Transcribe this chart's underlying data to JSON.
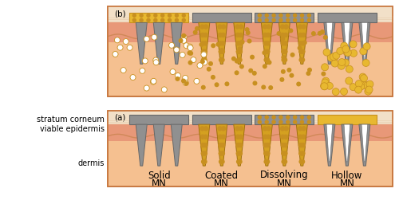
{
  "bg_color": "#ffffff",
  "dermis_color": "#f5c090",
  "epi_color": "#e89878",
  "sc_color": "#f2e0c8",
  "sc_cell_color": "#e8d0b0",
  "border_color": "#c87840",
  "wave_color": "#d08858",
  "gray_color": "#909090",
  "gray_dark": "#686868",
  "gold_color": "#c89020",
  "gold_light": "#e8b830",
  "gold_dot": "#c89020",
  "gold_fill": "#d4a020",
  "white_color": "#ffffff",
  "label_a": "(a)",
  "label_b": "(b)",
  "text_sc": "stratum corneum",
  "text_ve": "viable epidermis",
  "text_d": "dermis",
  "titles": [
    "Solid",
    "Coated",
    "Dissolving",
    "Hollow"
  ],
  "subtitle": "MN",
  "mn_types": [
    "solid",
    "coated",
    "dissolving",
    "hollow"
  ],
  "fig_width": 5.0,
  "fig_height": 2.61,
  "dpi": 100
}
